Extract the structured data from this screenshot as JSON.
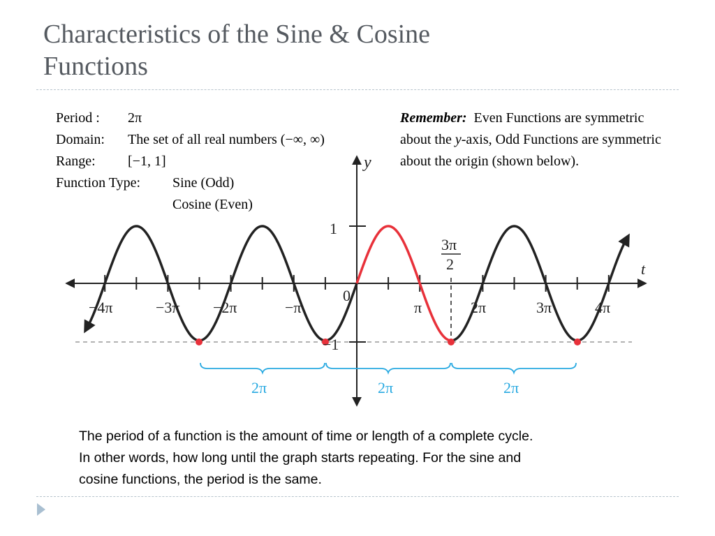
{
  "slide": {
    "title_line1": "Characteristics of the Sine & Cosine",
    "title_line2": "Functions",
    "properties": {
      "period_label": "Period :",
      "period_value": "2π",
      "domain_label": "Domain:",
      "domain_value": "The set of all real numbers (−∞, ∞)",
      "range_label": "Range:",
      "range_value": "[−1, 1]",
      "type_label": "Function Type:",
      "type_value_1": "Sine (Odd)",
      "type_value_2": "Cosine (Even)"
    },
    "remember": {
      "label": "Remember:",
      "text_part1": "Even Functions are symmetric about the",
      "text_italic": "y",
      "text_part2": "-axis, Odd Functions are symmetric about the origin (shown below)."
    },
    "caption": {
      "line1": "The period of a function is the amount of time or length of a complete cycle.",
      "line2": "In other words, how long until the graph starts repeating.  For the sine and",
      "line3": "cosine functions, the period is the same."
    }
  },
  "graph": {
    "y_axis_label": "y",
    "x_axis_label": "t",
    "origin_label": "0",
    "tick_labels_x": [
      "−4π",
      "−3π",
      "−2π",
      "−π",
      "π",
      "2π",
      "3π",
      "4π"
    ],
    "y_tick_1": "1",
    "y_tick_minus1": "−1",
    "three_pi_num": "3π",
    "three_pi_den": "2",
    "period_labels": [
      "2π",
      "2π",
      "2π"
    ],
    "colors": {
      "curve": "#222222",
      "highlight": "#e8313a",
      "brace": "#27a9e1",
      "dashed": "#999999"
    }
  }
}
